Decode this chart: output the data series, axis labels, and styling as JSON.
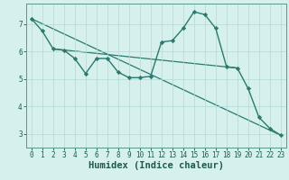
{
  "line1": {
    "x": [
      0,
      1,
      2,
      3,
      4,
      5,
      6,
      7,
      8,
      9,
      10,
      11,
      12,
      13,
      14,
      15,
      16,
      17,
      18,
      19,
      20,
      21,
      22,
      23
    ],
    "y": [
      7.2,
      6.75,
      6.1,
      6.05,
      5.75,
      5.2,
      5.75,
      5.75,
      5.25,
      5.05,
      5.05,
      5.1,
      6.35,
      6.4,
      6.85,
      7.45,
      7.35,
      6.85,
      5.45,
      5.4,
      4.65,
      3.6,
      3.2,
      2.95
    ],
    "color": "#2a7a6e",
    "marker": "D",
    "markersize": 2.2,
    "linewidth": 1.0
  },
  "line2": {
    "x": [
      0,
      23
    ],
    "y": [
      7.2,
      2.95
    ],
    "color": "#2a7a6e",
    "linewidth": 0.9
  },
  "line3": {
    "x": [
      2,
      19
    ],
    "y": [
      6.1,
      5.4
    ],
    "color": "#2a7a6e",
    "linewidth": 0.9
  },
  "xlabel": "Humidex (Indice chaleur)",
  "xlim": [
    -0.5,
    23.5
  ],
  "ylim": [
    2.5,
    7.75
  ],
  "yticks": [
    3,
    4,
    5,
    6,
    7
  ],
  "xticks": [
    0,
    1,
    2,
    3,
    4,
    5,
    6,
    7,
    8,
    9,
    10,
    11,
    12,
    13,
    14,
    15,
    16,
    17,
    18,
    19,
    20,
    21,
    22,
    23
  ],
  "bg_color": "#d6f0ee",
  "grid_color": "#aedada",
  "axis_color": "#5a9a8a",
  "text_color": "#1a5a50",
  "xlabel_fontsize": 7.5,
  "tick_fontsize": 5.5
}
